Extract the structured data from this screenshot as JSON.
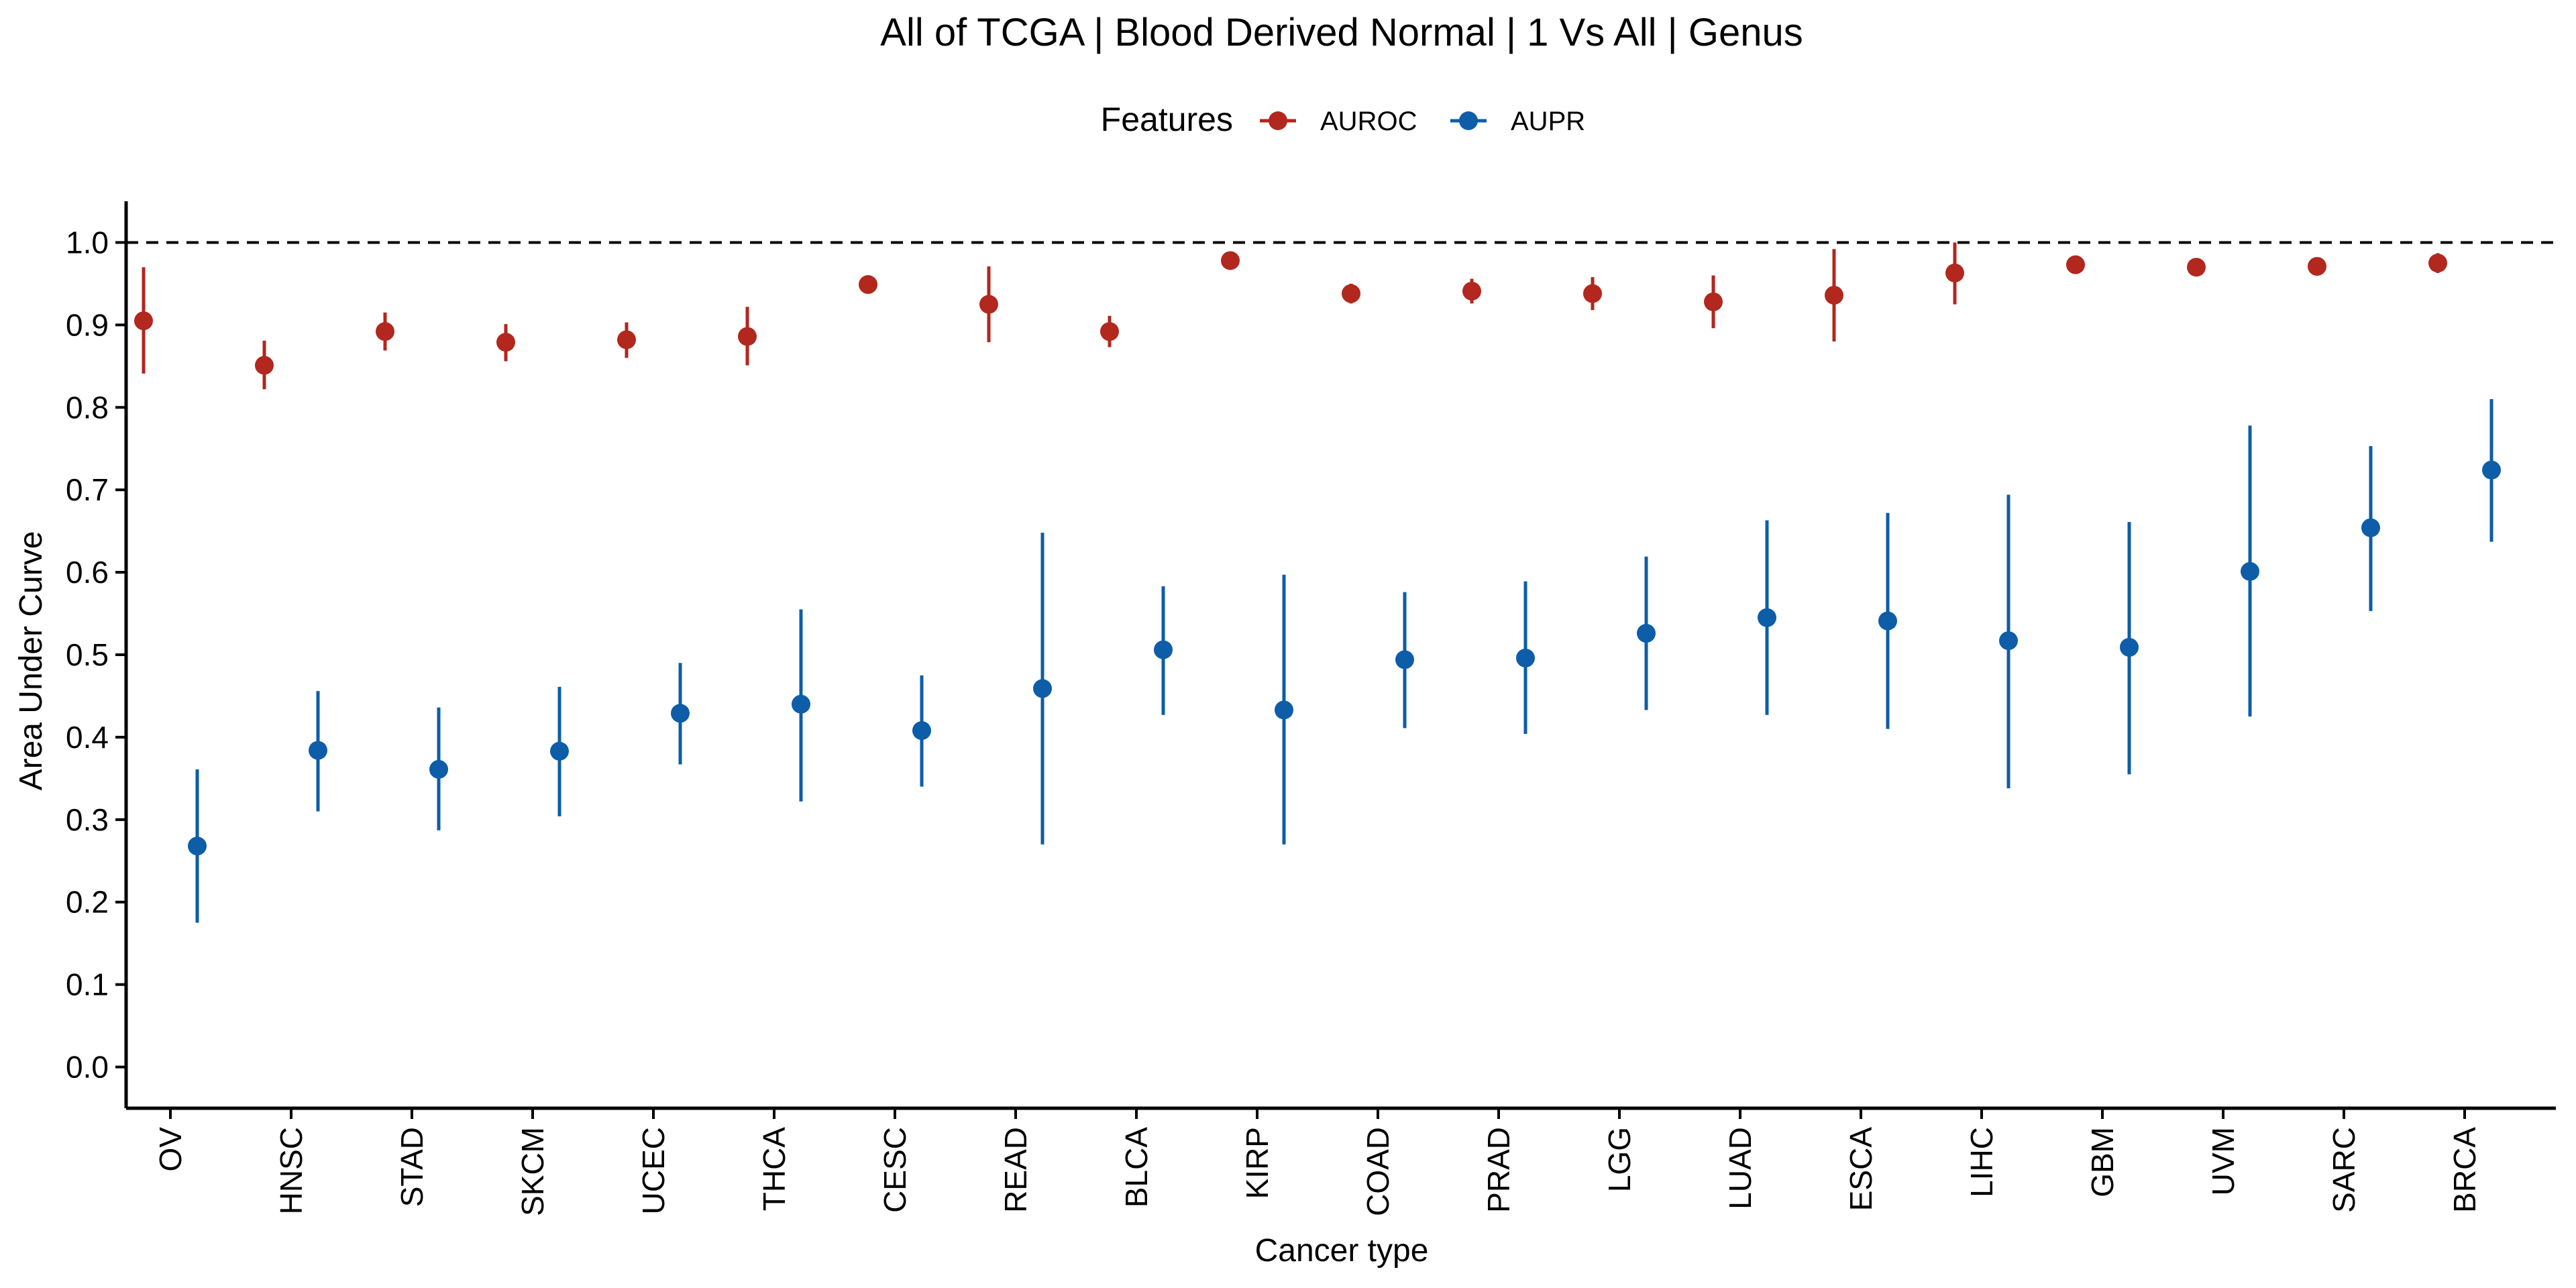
{
  "chart_data": {
    "type": "scatter",
    "title": "All of TCGA | Blood Derived Normal | 1 Vs All | Genus",
    "xlabel": "Cancer type",
    "ylabel": "Area Under Curve",
    "legend_title": "Features",
    "legend_position": "top",
    "ylim": [
      -0.05,
      1.05
    ],
    "yticks": [
      0.0,
      0.1,
      0.2,
      0.3,
      0.4,
      0.5,
      0.6,
      0.7,
      0.8,
      0.9,
      1.0
    ],
    "ytick_labels": [
      "0.0",
      "0.1",
      "0.2",
      "0.3",
      "0.4",
      "0.5",
      "0.6",
      "0.7",
      "0.8",
      "0.9",
      "1.0"
    ],
    "reference_line": 1.0,
    "grid": false,
    "categories": [
      "OV",
      "HNSC",
      "STAD",
      "SKCM",
      "UCEC",
      "THCA",
      "CESC",
      "READ",
      "BLCA",
      "KIRP",
      "COAD",
      "PRAD",
      "LGG",
      "LUAD",
      "ESCA",
      "LIHC",
      "GBM",
      "UVM",
      "SARC",
      "BRCA"
    ],
    "series": [
      {
        "name": "AUROC",
        "color": "#B2271E",
        "values": [
          0.905,
          0.851,
          0.892,
          0.879,
          0.882,
          0.886,
          0.949,
          0.925,
          0.892,
          0.978,
          0.938,
          0.941,
          0.938,
          0.928,
          0.936,
          0.963,
          0.973,
          0.97,
          0.971,
          0.975
        ],
        "lower": [
          0.841,
          0.822,
          0.869,
          0.856,
          0.86,
          0.851,
          0.943,
          0.879,
          0.873,
          0.973,
          0.926,
          0.926,
          0.918,
          0.896,
          0.88,
          0.925,
          0.962,
          0.965,
          0.965,
          0.963
        ],
        "upper": [
          0.97,
          0.881,
          0.915,
          0.901,
          0.903,
          0.922,
          0.955,
          0.971,
          0.911,
          0.983,
          0.95,
          0.956,
          0.958,
          0.96,
          0.992,
          1.0,
          0.984,
          0.975,
          0.977,
          0.987
        ]
      },
      {
        "name": "AUPR",
        "color": "#0D5DA8",
        "values": [
          0.268,
          0.384,
          0.361,
          0.383,
          0.429,
          0.44,
          0.408,
          0.459,
          0.506,
          0.433,
          0.494,
          0.496,
          0.526,
          0.545,
          0.541,
          0.517,
          0.509,
          0.601,
          0.654,
          0.724
        ],
        "lower": [
          0.175,
          0.31,
          0.287,
          0.304,
          0.367,
          0.322,
          0.34,
          0.27,
          0.427,
          0.27,
          0.411,
          0.404,
          0.433,
          0.427,
          0.41,
          0.338,
          0.355,
          0.425,
          0.553,
          0.637
        ],
        "upper": [
          0.361,
          0.456,
          0.436,
          0.461,
          0.49,
          0.555,
          0.475,
          0.648,
          0.583,
          0.597,
          0.576,
          0.589,
          0.619,
          0.663,
          0.672,
          0.694,
          0.661,
          0.778,
          0.753,
          0.81
        ]
      }
    ]
  }
}
